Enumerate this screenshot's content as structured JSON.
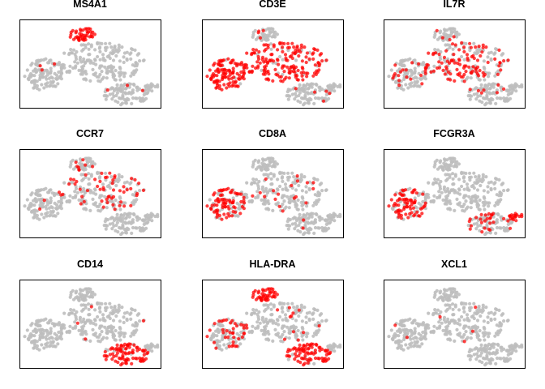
{
  "chart_data": {
    "type": "scatter",
    "description": "3x3 grid of tSNE feature plots; points coloured red where the marker gene is expressed, grey otherwise. No axes or tick labels shown.",
    "colors": {
      "background_points": "#bebebe",
      "expressed_points": "#ff0000",
      "frame": "#000000"
    },
    "axes_visible": false,
    "grid": false,
    "panels": [
      {
        "title": "MS4A1",
        "highlight": [
          {
            "cluster": "top",
            "density": 1.0
          },
          {
            "cluster": "left",
            "density": 0.02
          },
          {
            "cluster": "center",
            "density": 0.01
          },
          {
            "cluster": "bottom",
            "density": 0.02
          }
        ]
      },
      {
        "title": "CD3E",
        "highlight": [
          {
            "cluster": "left",
            "density": 0.95
          },
          {
            "cluster": "center",
            "density": 0.85
          },
          {
            "cluster": "bottom",
            "density": 0.05
          },
          {
            "cluster": "top",
            "density": 0.1
          }
        ]
      },
      {
        "title": "IL7R",
        "highlight": [
          {
            "cluster": "center",
            "density": 0.45
          },
          {
            "cluster": "left",
            "density": 0.15
          },
          {
            "cluster": "bottom",
            "density": 0.05
          },
          {
            "cluster": "top",
            "density": 0.05
          }
        ]
      },
      {
        "title": "CCR7",
        "highlight": [
          {
            "cluster": "center",
            "density": 0.3
          },
          {
            "cluster": "top",
            "density": 0.2
          },
          {
            "cluster": "left",
            "density": 0.03
          }
        ]
      },
      {
        "title": "CD8A",
        "highlight": [
          {
            "cluster": "left",
            "density": 0.65
          },
          {
            "cluster": "center",
            "density": 0.12
          },
          {
            "cluster": "bottom",
            "density": 0.05
          }
        ]
      },
      {
        "title": "FCGR3A",
        "highlight": [
          {
            "cluster": "left",
            "density": 0.6
          },
          {
            "cluster": "bottom",
            "density": 0.35
          },
          {
            "cluster": "bottom-right-tip",
            "density": 1.0
          }
        ]
      },
      {
        "title": "CD14",
        "highlight": [
          {
            "cluster": "bottom",
            "density": 0.9
          },
          {
            "cluster": "center",
            "density": 0.01
          }
        ]
      },
      {
        "title": "HLA-DRA",
        "highlight": [
          {
            "cluster": "top",
            "density": 1.0
          },
          {
            "cluster": "bottom",
            "density": 0.95
          },
          {
            "cluster": "left",
            "density": 0.3
          },
          {
            "cluster": "center",
            "density": 0.05
          }
        ]
      },
      {
        "title": "XCL1",
        "highlight": [
          {
            "cluster": "left",
            "density": 0.04
          },
          {
            "cluster": "center",
            "density": 0.005
          }
        ]
      }
    ]
  }
}
